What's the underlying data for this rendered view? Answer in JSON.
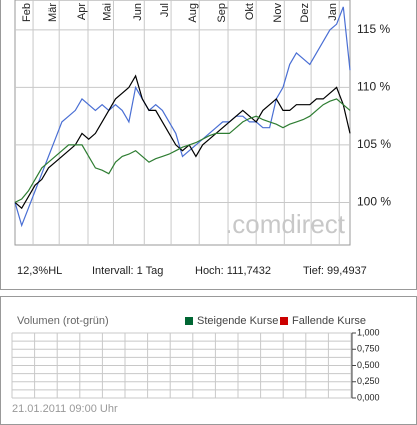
{
  "chart_data": [
    {
      "type": "line",
      "x": [
        0,
        1,
        2,
        3,
        4,
        5,
        6,
        7,
        8,
        9,
        10,
        11,
        12,
        13,
        14,
        15,
        16,
        17,
        18,
        19,
        20,
        21,
        22,
        23,
        24,
        25,
        26,
        27,
        28,
        29,
        30,
        31,
        32,
        33,
        34,
        35,
        36,
        37,
        38,
        39,
        40,
        41,
        42,
        43,
        44,
        45,
        46,
        47,
        48,
        49,
        50
      ],
      "xlim": [
        0,
        50
      ],
      "xticks": [
        {
          "value": 1.8,
          "label": "Feb"
        },
        {
          "value": 5.7,
          "label": "Mär"
        },
        {
          "value": 10,
          "label": "Apr"
        },
        {
          "value": 13.8,
          "label": "Mai"
        },
        {
          "value": 18.4,
          "label": "Jun"
        },
        {
          "value": 22.4,
          "label": "Jul"
        },
        {
          "value": 26.6,
          "label": "Aug"
        },
        {
          "value": 30.9,
          "label": "Sep"
        },
        {
          "value": 35.1,
          "label": "Okt"
        },
        {
          "value": 39.3,
          "label": "Nov"
        },
        {
          "value": 43.3,
          "label": "Dez"
        },
        {
          "value": 47.5,
          "label": "Jan"
        }
      ],
      "ylim": [
        96.3,
        117.6
      ],
      "yticks": [
        {
          "value": 100,
          "label": "100 %"
        },
        {
          "value": 105,
          "label": "105 %"
        },
        {
          "value": 110,
          "label": "110 %"
        },
        {
          "value": 115,
          "label": "115 %"
        }
      ],
      "grid": true,
      "watermark": ".comdirect",
      "stats": [
        "12,3%HL",
        "Intervall: 1 Tag",
        "Hoch: 111,7432",
        "Tief: 99,4937"
      ],
      "series": [
        {
          "color": "#4a6fd4",
          "values": [
            100,
            98,
            99.5,
            101,
            102.5,
            104,
            105.5,
            107,
            107.5,
            108,
            109,
            108.5,
            108,
            108.5,
            108,
            108.5,
            108,
            107,
            110,
            109,
            108,
            108.5,
            108,
            107,
            106,
            104,
            104.5,
            105,
            105.5,
            106,
            106.5,
            107,
            107,
            107.5,
            107.5,
            107,
            107,
            106.5,
            106.5,
            109,
            110,
            112,
            113,
            112.5,
            112,
            113,
            114,
            115,
            115.5,
            117,
            111.5
          ]
        },
        {
          "color": "#000000",
          "values": [
            100,
            99.5,
            100.5,
            101.5,
            102,
            103,
            103.5,
            104,
            104.5,
            105,
            106,
            105.5,
            106,
            107,
            108,
            109,
            109.5,
            110,
            111,
            109,
            108,
            108,
            107,
            106,
            105,
            104.5,
            105,
            104,
            105,
            105.5,
            106,
            106.5,
            107,
            107.5,
            108,
            107.5,
            107,
            108,
            108.5,
            109,
            108,
            108,
            108.5,
            108.5,
            108.5,
            109,
            109,
            109.5,
            110,
            108.5,
            106
          ]
        },
        {
          "color": "#2e7d32",
          "values": [
            100,
            100.3,
            101,
            102,
            103,
            103.5,
            104,
            104.5,
            105,
            105,
            105,
            104,
            103,
            102.8,
            102.5,
            103.5,
            104,
            104.2,
            104.5,
            104,
            103.5,
            103.8,
            104,
            104.2,
            104.5,
            104.8,
            105,
            105.2,
            105.5,
            105.8,
            106,
            106,
            106,
            106.5,
            107,
            107.3,
            107.5,
            107.2,
            107,
            106.8,
            106.5,
            106.8,
            107,
            107.2,
            107.5,
            108,
            108.5,
            108.8,
            109,
            108.5,
            108
          ]
        }
      ]
    },
    {
      "type": "bar",
      "title": "Volumen (rot-grün)",
      "series": [
        {
          "name": "Steigende Kurse",
          "color": "#006633",
          "values": []
        },
        {
          "name": "Fallende Kurse",
          "color": "#cc0000",
          "values": []
        }
      ],
      "ylim": [
        0,
        1
      ],
      "yticks": [
        {
          "value": 0,
          "label": "0,000"
        },
        {
          "value": 0.25,
          "label": "0,250"
        },
        {
          "value": 0.5,
          "label": "0,500"
        },
        {
          "value": 0.75,
          "label": "0,750"
        },
        {
          "value": 1,
          "label": "1,000"
        }
      ],
      "footer": "21.01.2011 09:00 Uhr"
    }
  ]
}
